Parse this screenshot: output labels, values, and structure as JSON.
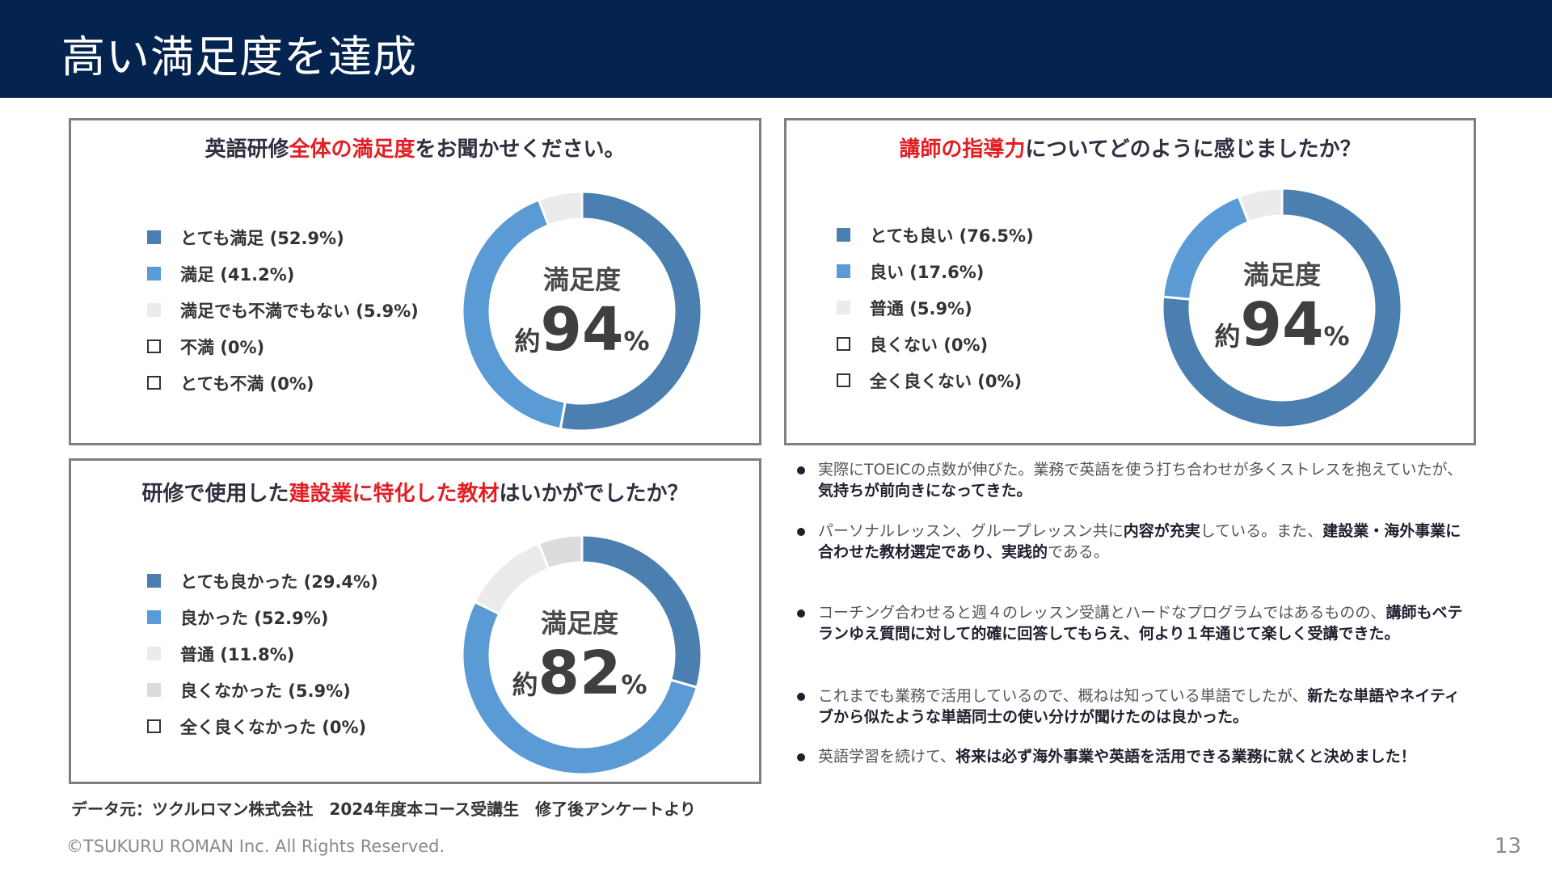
{
  "page": {
    "title": "高い満足度を達成",
    "source_note": "データ元：ツクルロマン株式会社　2024年度本コース受講生　修了後アンケートより",
    "copyright": "©TSUKURU ROMAN Inc. All Rights Reserved.",
    "page_number": "13"
  },
  "chart_data": [
    {
      "type": "pie",
      "style": "donut",
      "title_parts": [
        "英語研修",
        "全体の満足度",
        "をお聞かせください。"
      ],
      "center_title": "満足度",
      "center_prefix": "約",
      "center_value": "94",
      "center_suffix": "%",
      "slices": [
        {
          "label": "とても満足 (52.9%)",
          "value": 52.9,
          "color": "#4b7fb0",
          "outline": false
        },
        {
          "label": "満足 (41.2%)",
          "value": 41.2,
          "color": "#5b9bd5",
          "outline": false
        },
        {
          "label": "満足でも不満でもない (5.9%)",
          "value": 5.9,
          "color": "#ebebeb",
          "outline": false
        },
        {
          "label": "不満 (0%)",
          "value": 0,
          "color": "#ffffff",
          "outline": true
        },
        {
          "label": "とても不満 (0%)",
          "value": 0,
          "color": "#ffffff",
          "outline": true
        }
      ]
    },
    {
      "type": "pie",
      "style": "donut",
      "title_parts": [
        "",
        "講師の指導力",
        "についてどのように感じましたか？"
      ],
      "center_title": "満足度",
      "center_prefix": "約",
      "center_value": "94",
      "center_suffix": "%",
      "slices": [
        {
          "label": "とても良い (76.5%)",
          "value": 76.5,
          "color": "#4b7fb0",
          "outline": false
        },
        {
          "label": "良い (17.6%)",
          "value": 17.6,
          "color": "#5b9bd5",
          "outline": false
        },
        {
          "label": "普通 (5.9%)",
          "value": 5.9,
          "color": "#ebebeb",
          "outline": false
        },
        {
          "label": "良くない (0%)",
          "value": 0,
          "color": "#ffffff",
          "outline": true
        },
        {
          "label": "全く良くない (0%)",
          "value": 0,
          "color": "#ffffff",
          "outline": true
        }
      ]
    },
    {
      "type": "pie",
      "style": "donut",
      "title_parts": [
        "研修で使用した",
        "建設業に特化した教材",
        "はいかがでしたか？"
      ],
      "center_title": "満足度",
      "center_prefix": "約",
      "center_value": "82",
      "center_suffix": "%",
      "slices": [
        {
          "label": "とても良かった (29.4%)",
          "value": 29.4,
          "color": "#4b7fb0",
          "outline": false
        },
        {
          "label": "良かった (52.9%)",
          "value": 52.9,
          "color": "#5b9bd5",
          "outline": false
        },
        {
          "label": "普通 (11.8%)",
          "value": 11.8,
          "color": "#ebebeb",
          "outline": false
        },
        {
          "label": "良くなかった (5.9%)",
          "value": 5.9,
          "color": "#dcdcdc",
          "outline": false
        },
        {
          "label": "全く良くなかった (0%)",
          "value": 0,
          "color": "#ffffff",
          "outline": true
        }
      ]
    }
  ],
  "comments": [
    [
      {
        "text": "実際にTOEICの点数が伸びた。業務で英語を使う打ち合わせが多くストレスを抱えていたが、",
        "bold": false
      },
      {
        "text": "気持ちが前向きになってきた。",
        "bold": true
      }
    ],
    [
      {
        "text": "パーソナルレッスン、グループレッスン共に",
        "bold": false
      },
      {
        "text": "内容が充実",
        "bold": true
      },
      {
        "text": "している。また、",
        "bold": false
      },
      {
        "text": "建設業・海外事業に合わせた教材選定であり、実践的",
        "bold": true
      },
      {
        "text": "である。",
        "bold": false
      }
    ],
    [
      {
        "text": "コーチング合わせると週４のレッスン受講とハードなプログラムではあるものの、",
        "bold": false
      },
      {
        "text": "講師もベテランゆえ質問に対して的確に回答してもらえ、何より１年通じて楽しく受講できた。",
        "bold": true
      }
    ],
    [
      {
        "text": "これまでも業務で活用しているので、概ねは知っている単語でしたが、",
        "bold": false
      },
      {
        "text": "新たな単語やネイティブから似たような単語同士の使い分けが聞けたのは良かった。",
        "bold": true
      }
    ],
    [
      {
        "text": "英語学習を続けて、",
        "bold": false
      },
      {
        "text": "将来は必ず海外事業や英語を活用できる業務に就くと決めました！",
        "bold": true
      }
    ]
  ]
}
